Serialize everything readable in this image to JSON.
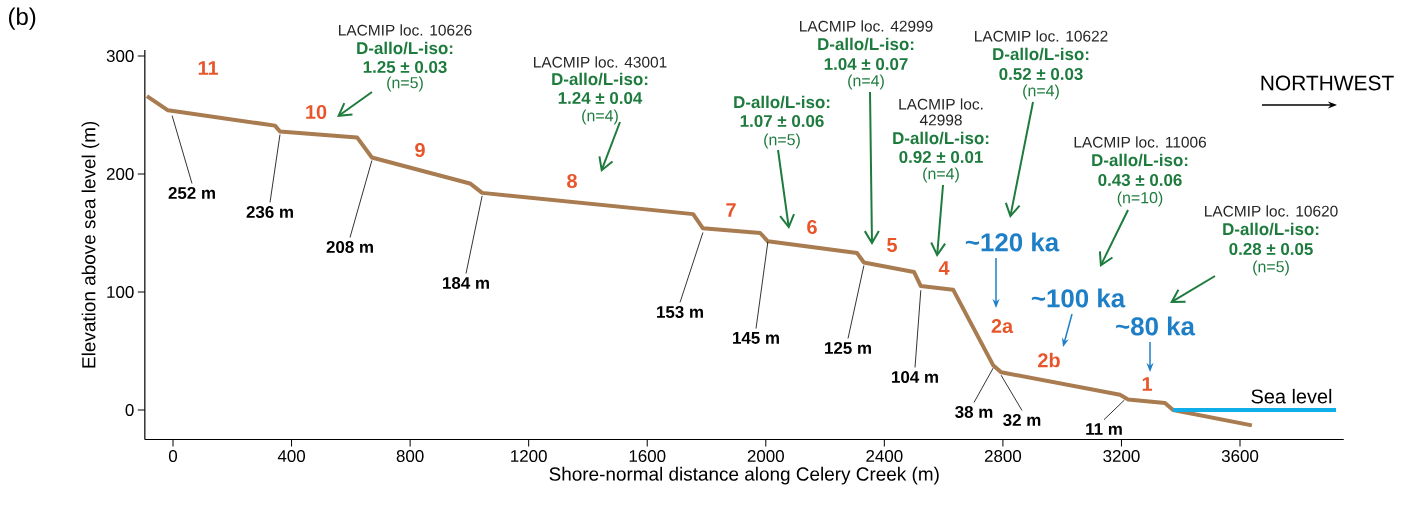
{
  "chart_data": {
    "type": "line",
    "xlabel": "Shore-normal distance along Celery Creek (m)",
    "ylabel": "Elevation above sea level (m)",
    "xlim": [
      -95,
      3950
    ],
    "ylim": [
      -25,
      305
    ],
    "xticks": [
      0,
      400,
      800,
      1200,
      1600,
      2000,
      2400,
      2800,
      3200,
      3600
    ],
    "yticks": [
      0,
      100,
      200,
      300
    ],
    "line_style": "solid",
    "series": [
      {
        "color": "#a87c50",
        "x": [
          -88,
          -17,
          344,
          361,
          621,
          671,
          1002,
          1043,
          1755,
          1788,
          1981,
          2007,
          2308,
          2331,
          2500,
          2523,
          2632,
          2767,
          2794,
          3195,
          3222,
          3347,
          3374,
          3640
        ],
        "values": [
          266,
          254,
          241,
          236,
          231,
          214,
          192,
          184,
          166,
          154,
          150,
          143,
          133,
          125,
          117,
          105,
          102,
          38,
          32,
          13,
          9,
          6,
          0,
          -13
        ]
      },
      {
        "name": "Sea level",
        "color": "#10aee8",
        "x": [
          3374,
          3924
        ],
        "values": [
          0,
          0
        ]
      }
    ],
    "annotations": [
      "(b)",
      {
        "text": "252 m",
        "x": -3,
        "y": 252
      },
      {
        "text": "236 m",
        "x": 361,
        "y": 236
      },
      {
        "text": "208 m",
        "x": 671,
        "y": 214
      },
      {
        "text": "184 m",
        "x": 1043,
        "y": 184
      },
      {
        "text": "153 m",
        "x": 1788,
        "y": 153
      },
      {
        "text": "145 m",
        "x": 2007,
        "y": 145
      },
      {
        "text": "125 m",
        "x": 2331,
        "y": 125
      },
      {
        "text": "104 m",
        "x": 2523,
        "y": 104
      },
      {
        "text": "38 m",
        "x": 2767,
        "y": 38
      },
      {
        "text": "32 m",
        "x": 2794,
        "y": 32
      },
      {
        "text": "11 m",
        "x": 3210,
        "y": 11
      },
      "11",
      "10",
      "9",
      "8",
      "7",
      "6",
      "5",
      "4",
      "2a",
      "2b",
      "1",
      "~120 ka",
      "~100 ka",
      "~80 ka",
      "LACMIP loc. 10626",
      "D-allo/L-iso:",
      "1.25 ± 0.03",
      "(n=5)",
      "LACMIP loc. 43001",
      "D-allo/L-iso:",
      "1.24 ± 0.04",
      "(n=4)",
      "D-allo/L-iso:",
      "1.07 ± 0.06",
      "(n=5)",
      "LACMIP loc. 42999",
      "D-allo/L-iso:",
      "1.04 ± 0.07",
      "(n=4)",
      "LACMIP loc.",
      "42998",
      "D-allo/L-iso:",
      "0.92 ± 0.01",
      "(n=4)",
      "LACMIP loc. 10622",
      "D-allo/L-iso:",
      "0.52 ± 0.03",
      "(n=4)",
      "LACMIP loc. 11006",
      "D-allo/L-iso:",
      "0.43 ± 0.06",
      "(n=10)",
      "LACMIP loc. 10620",
      "D-allo/L-iso:",
      "0.28 ± 0.05",
      "(n=5)",
      "NORTHWEST"
    ]
  }
}
